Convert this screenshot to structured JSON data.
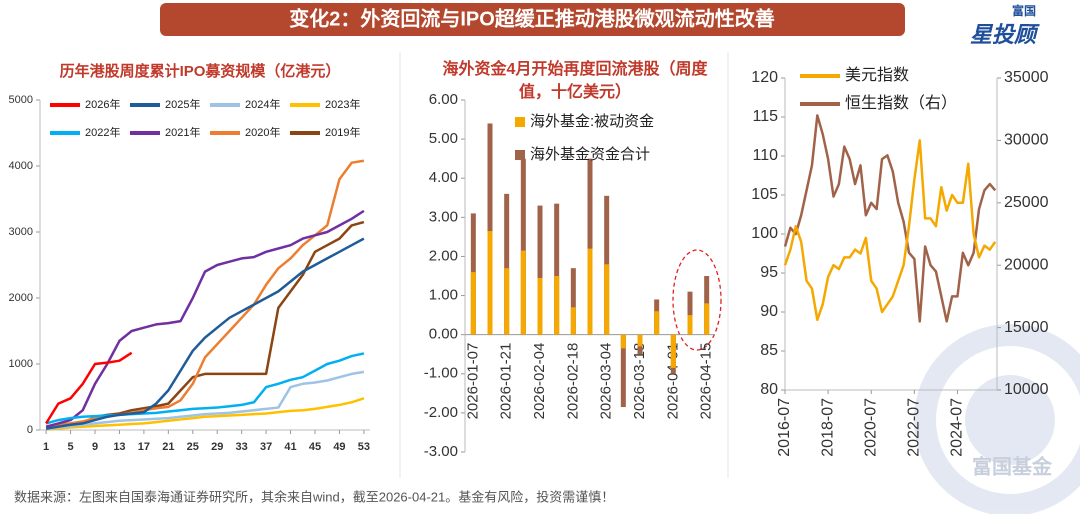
{
  "header": {
    "title": "变化2：外资回流与IPO超缓正推动港股微观流动性改善",
    "logo_small": "富国",
    "logo_main": "星投顾"
  },
  "chart_data": [
    {
      "type": "line",
      "title": "历年港股周度累计IPO募资规模（亿港元）",
      "x": [
        1,
        3,
        5,
        7,
        9,
        11,
        13,
        15,
        17,
        19,
        21,
        23,
        25,
        27,
        29,
        31,
        33,
        35,
        37,
        39,
        41,
        43,
        45,
        47,
        49,
        51,
        53
      ],
      "xlim": [
        0,
        54
      ],
      "xticks": [
        1,
        5,
        9,
        13,
        17,
        21,
        25,
        29,
        33,
        37,
        41,
        45,
        49,
        53
      ],
      "ylim": [
        0,
        5000
      ],
      "yticks": [
        0,
        1000,
        2000,
        3000,
        4000,
        5000
      ],
      "legend": "top-left",
      "series": [
        {
          "name": "2026年",
          "color": "#ff0000",
          "values": [
            100,
            400,
            480,
            700,
            1000,
            1020,
            1050,
            1170,
            null,
            null,
            null,
            null,
            null,
            null,
            null,
            null,
            null,
            null,
            null,
            null,
            null,
            null,
            null,
            null,
            null,
            null,
            null
          ]
        },
        {
          "name": "2025年",
          "color": "#1f5c99",
          "values": [
            20,
            50,
            80,
            100,
            150,
            200,
            230,
            250,
            270,
            400,
            600,
            900,
            1200,
            1400,
            1550,
            1700,
            1800,
            1900,
            2000,
            2100,
            2250,
            2400,
            2500,
            2600,
            2700,
            2800,
            2900
          ]
        },
        {
          "name": "2024年",
          "color": "#9dc3e6",
          "values": [
            10,
            40,
            60,
            80,
            100,
            120,
            140,
            150,
            160,
            170,
            180,
            200,
            220,
            240,
            250,
            260,
            280,
            300,
            320,
            340,
            650,
            700,
            720,
            750,
            800,
            850,
            880
          ]
        },
        {
          "name": "2023年",
          "color": "#ffc000",
          "values": [
            5,
            20,
            40,
            50,
            60,
            70,
            80,
            90,
            100,
            120,
            140,
            160,
            180,
            200,
            210,
            220,
            230,
            240,
            250,
            270,
            290,
            300,
            320,
            350,
            380,
            420,
            480
          ]
        },
        {
          "name": "2022年",
          "color": "#00b0f0",
          "values": [
            100,
            150,
            180,
            200,
            210,
            220,
            230,
            240,
            250,
            260,
            280,
            300,
            320,
            330,
            340,
            360,
            380,
            420,
            650,
            700,
            760,
            800,
            900,
            1000,
            1050,
            1120,
            1160
          ]
        },
        {
          "name": "2021年",
          "color": "#7030a0",
          "values": [
            50,
            100,
            150,
            300,
            700,
            1000,
            1350,
            1500,
            1550,
            1600,
            1620,
            1650,
            2000,
            2400,
            2500,
            2550,
            2600,
            2620,
            2700,
            2750,
            2800,
            2900,
            2950,
            3000,
            3100,
            3200,
            3320
          ]
        },
        {
          "name": "2020年",
          "color": "#ed7d31",
          "values": [
            50,
            80,
            100,
            130,
            180,
            200,
            230,
            260,
            300,
            330,
            350,
            450,
            700,
            1100,
            1300,
            1500,
            1700,
            1900,
            2200,
            2450,
            2600,
            2800,
            2950,
            3100,
            3800,
            4050,
            4080
          ]
        },
        {
          "name": "2019年",
          "color": "#8b4513",
          "values": [
            30,
            50,
            60,
            100,
            200,
            230,
            250,
            300,
            330,
            360,
            400,
            600,
            800,
            850,
            850,
            850,
            850,
            850,
            850,
            1850,
            2100,
            2350,
            2700,
            2800,
            2900,
            3100,
            3150
          ]
        }
      ]
    },
    {
      "type": "bar",
      "title": "海外资金4月开始再度回流港股（周度值，十亿美元）",
      "categories": [
        "2026-01-07",
        null,
        "2026-01-21",
        null,
        "2026-02-04",
        null,
        "2026-02-18",
        null,
        "2026-03-04",
        null,
        "2026-03-18",
        null,
        "2026-04-01",
        null,
        "2026-04-15"
      ],
      "ylim": [
        -3,
        6
      ],
      "yticks": [
        {
          "value": 6,
          "label": "6.00"
        },
        {
          "value": 5,
          "label": "5.00"
        },
        {
          "value": 4,
          "label": "4.00"
        },
        {
          "value": 3,
          "label": "3.00"
        },
        {
          "value": 2,
          "label": "2.00"
        },
        {
          "value": 1,
          "label": "1.00"
        },
        {
          "value": 0,
          "label": "0.00"
        },
        {
          "value": -1,
          "label": "-1.00"
        },
        {
          "value": -2,
          "label": "-2.00"
        },
        {
          "value": -3,
          "label": "-3.00"
        }
      ],
      "legend": "top-left",
      "series": [
        {
          "name": "海外基金:被动资金",
          "color": "#f5a800",
          "values": [
            1.6,
            2.65,
            1.7,
            2.15,
            1.45,
            1.5,
            0.7,
            2.2,
            1.8,
            -0.35,
            -0.3,
            0.6,
            -0.85,
            0.5,
            0.8
          ]
        },
        {
          "name": "海外基金资金合计",
          "color": "#a0634a",
          "values": [
            3.1,
            5.4,
            3.6,
            4.5,
            3.3,
            3.35,
            1.7,
            4.5,
            3.55,
            -1.85,
            -0.5,
            0.9,
            -1.0,
            1.1,
            1.5
          ]
        }
      ]
    },
    {
      "type": "line",
      "x": [
        "2016-07",
        "2016-10",
        "2017-01",
        "2017-04",
        "2017-07",
        "2017-10",
        "2018-01",
        "2018-04",
        "2018-07",
        "2018-10",
        "2019-01",
        "2019-04",
        "2019-07",
        "2019-10",
        "2020-01",
        "2020-04",
        "2020-07",
        "2020-10",
        "2021-01",
        "2021-04",
        "2021-07",
        "2021-10",
        "2022-01",
        "2022-04",
        "2022-07",
        "2022-10",
        "2023-01",
        "2023-04",
        "2023-07",
        "2023-10",
        "2024-01",
        "2024-04",
        "2024-07",
        "2024-10",
        "2025-01",
        "2025-04",
        "2025-07",
        "2025-10",
        "2026-01",
        "2026-04"
      ],
      "xlim": [
        "2016-07",
        "2026-05"
      ],
      "xticks": [
        "2016-07",
        "2018-07",
        "2020-07",
        "2022-07",
        "2024-07"
      ],
      "ylim": [
        80,
        120
      ],
      "yticks": [
        80,
        85,
        90,
        95,
        100,
        105,
        110,
        115,
        120
      ],
      "y2lim": [
        10000,
        35000
      ],
      "y2ticks": [
        10000,
        15000,
        20000,
        25000,
        30000,
        35000
      ],
      "legend": "top-left",
      "series": [
        {
          "name": "美元指数",
          "color": "#f5a800",
          "values": [
            96,
            98,
            101,
            99,
            94,
            93,
            89,
            91,
            94.5,
            96,
            95.5,
            97,
            97,
            98,
            97.5,
            99.5,
            94,
            93,
            90,
            91,
            92,
            94,
            96,
            101,
            107,
            112,
            102,
            102,
            101,
            106,
            103,
            105,
            104,
            104,
            109,
            100,
            97,
            98.5,
            98,
            99
          ]
        },
        {
          "name": "恒生指数（右）",
          "color": "#a0634a",
          "axis": "y2",
          "values": [
            21500,
            23000,
            22500,
            24000,
            26000,
            28000,
            32000,
            30500,
            28500,
            25500,
            26500,
            29500,
            28500,
            26500,
            28000,
            24000,
            25000,
            24500,
            28500,
            28800,
            27500,
            25000,
            23500,
            21000,
            20500,
            15500,
            21500,
            20000,
            19500,
            17500,
            15500,
            17500,
            17500,
            21000,
            20000,
            21000,
            24500,
            26000,
            26500,
            26000
          ]
        }
      ]
    }
  ],
  "footer": {
    "source": "数据来源：左图来自国泰海通证券研究所，其余来自wind，截至2026-04-21。基金有风险，投资需谨慎！"
  },
  "watermark": "富国基金"
}
